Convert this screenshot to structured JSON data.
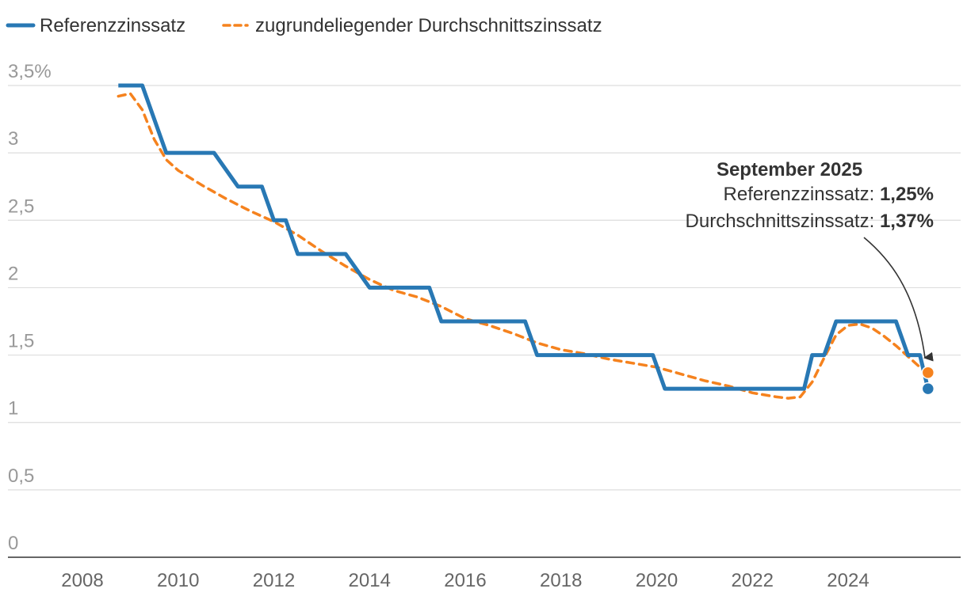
{
  "chart_data": {
    "type": "line",
    "title": "",
    "xlabel": "",
    "ylabel": "",
    "xlim": [
      2007.3,
      2026.3
    ],
    "ylim": [
      0,
      3.5
    ],
    "x_ticks": [
      2008,
      2010,
      2012,
      2014,
      2016,
      2018,
      2020,
      2022,
      2024
    ],
    "x_tick_labels": [
      "2008",
      "2010",
      "2012",
      "2014",
      "2016",
      "2018",
      "2020",
      "2022",
      "2024"
    ],
    "y_ticks": [
      0,
      0.5,
      1,
      1.5,
      2,
      2.5,
      3,
      3.5
    ],
    "y_tick_labels": [
      "0",
      "0,5",
      "1",
      "1,5",
      "2",
      "2,5",
      "3",
      "3,5%"
    ],
    "grid": "horizontal",
    "legend_position": "top-left",
    "series": [
      {
        "name": "Referenzzinssatz",
        "color": "#2878b4",
        "style": "solid-step",
        "x": [
          2008.75,
          2009.25,
          2009.75,
          2010.75,
          2011.25,
          2011.75,
          2012.0,
          2012.25,
          2012.5,
          2013.5,
          2014.0,
          2015.25,
          2015.5,
          2017.25,
          2017.5,
          2019.92,
          2020.17,
          2023.08,
          2023.25,
          2023.5,
          2023.75,
          2025.0,
          2025.25,
          2025.5,
          2025.67
        ],
        "values": [
          3.5,
          3.5,
          3.0,
          3.0,
          2.75,
          2.75,
          2.5,
          2.5,
          2.25,
          2.25,
          2.0,
          2.0,
          1.75,
          1.75,
          1.5,
          1.5,
          1.25,
          1.25,
          1.5,
          1.5,
          1.75,
          1.75,
          1.5,
          1.5,
          1.25
        ]
      },
      {
        "name": "zugrundeliegender Durchschnittszinssatz",
        "color": "#f5821e",
        "style": "dashed",
        "x": [
          2008.75,
          2009.0,
          2009.25,
          2009.5,
          2009.75,
          2010.0,
          2010.5,
          2011.0,
          2011.5,
          2012.0,
          2012.5,
          2013.0,
          2013.5,
          2014.0,
          2014.5,
          2015.0,
          2015.5,
          2016.0,
          2016.5,
          2017.0,
          2017.5,
          2018.0,
          2018.5,
          2019.0,
          2019.5,
          2020.0,
          2020.5,
          2021.0,
          2021.5,
          2022.0,
          2022.5,
          2022.75,
          2023.0,
          2023.25,
          2023.5,
          2023.75,
          2024.0,
          2024.25,
          2024.5,
          2024.75,
          2025.0,
          2025.25,
          2025.5,
          2025.67
        ],
        "values": [
          3.42,
          3.44,
          3.32,
          3.1,
          2.95,
          2.87,
          2.76,
          2.66,
          2.57,
          2.49,
          2.39,
          2.27,
          2.16,
          2.06,
          1.98,
          1.93,
          1.86,
          1.77,
          1.72,
          1.66,
          1.59,
          1.54,
          1.51,
          1.47,
          1.44,
          1.41,
          1.36,
          1.31,
          1.27,
          1.22,
          1.19,
          1.18,
          1.19,
          1.3,
          1.48,
          1.65,
          1.72,
          1.73,
          1.7,
          1.64,
          1.57,
          1.49,
          1.41,
          1.37
        ]
      }
    ],
    "endpoints": [
      {
        "series": "Referenzzinssatz",
        "x": 2025.67,
        "value": 1.25
      },
      {
        "series": "zugrundeliegender Durchschnittszinssatz",
        "x": 2025.67,
        "value": 1.37
      }
    ],
    "annotation": {
      "title": "September 2025",
      "line1_label": "Referenzzinssatz: ",
      "line1_value": "1,25%",
      "line2_label": "Durchschnittszinssatz: ",
      "line2_value": "1,37%"
    },
    "colors": {
      "grid": "#dddddd",
      "axis": "#333333",
      "arrow": "#333333"
    }
  }
}
